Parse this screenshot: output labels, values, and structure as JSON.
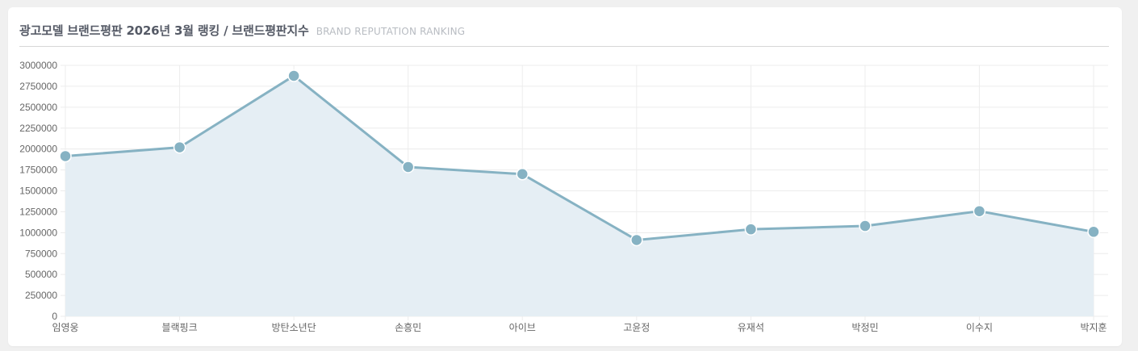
{
  "header": {
    "title": "광고모델 브랜드평판 2026년 3월 랭킹 / 브랜드평판지수",
    "subtitle": "BRAND REPUTATION RANKING"
  },
  "colors": {
    "line": "#86b2c3",
    "area": "#e5eef4",
    "point_fill": "#86b2c3",
    "point_stroke": "#ffffff",
    "grid": "#ececec"
  },
  "chart_data": {
    "type": "area",
    "categories": [
      "임영웅",
      "블랙핑크",
      "방탄소년단",
      "손흥민",
      "아이브",
      "고윤정",
      "유재석",
      "박정민",
      "이수지",
      "박지훈"
    ],
    "series": [
      {
        "values": [
          1915000,
          2020000,
          2875000,
          1785000,
          1700000,
          912000,
          1040000,
          1080000,
          1257000,
          1010000
        ]
      }
    ],
    "ylim": [
      0,
      3000000
    ],
    "yticks": [
      0,
      250000,
      500000,
      750000,
      1000000,
      1250000,
      1500000,
      1750000,
      2000000,
      2250000,
      2500000,
      2750000,
      3000000
    ],
    "ytick_labels": [
      "0",
      "250000",
      "500000",
      "750000",
      "1000000",
      "1250000",
      "1500000",
      "1750000",
      "2000000",
      "2250000",
      "2500000",
      "2750000",
      "3000000"
    ],
    "grid": true,
    "legend": "none"
  }
}
